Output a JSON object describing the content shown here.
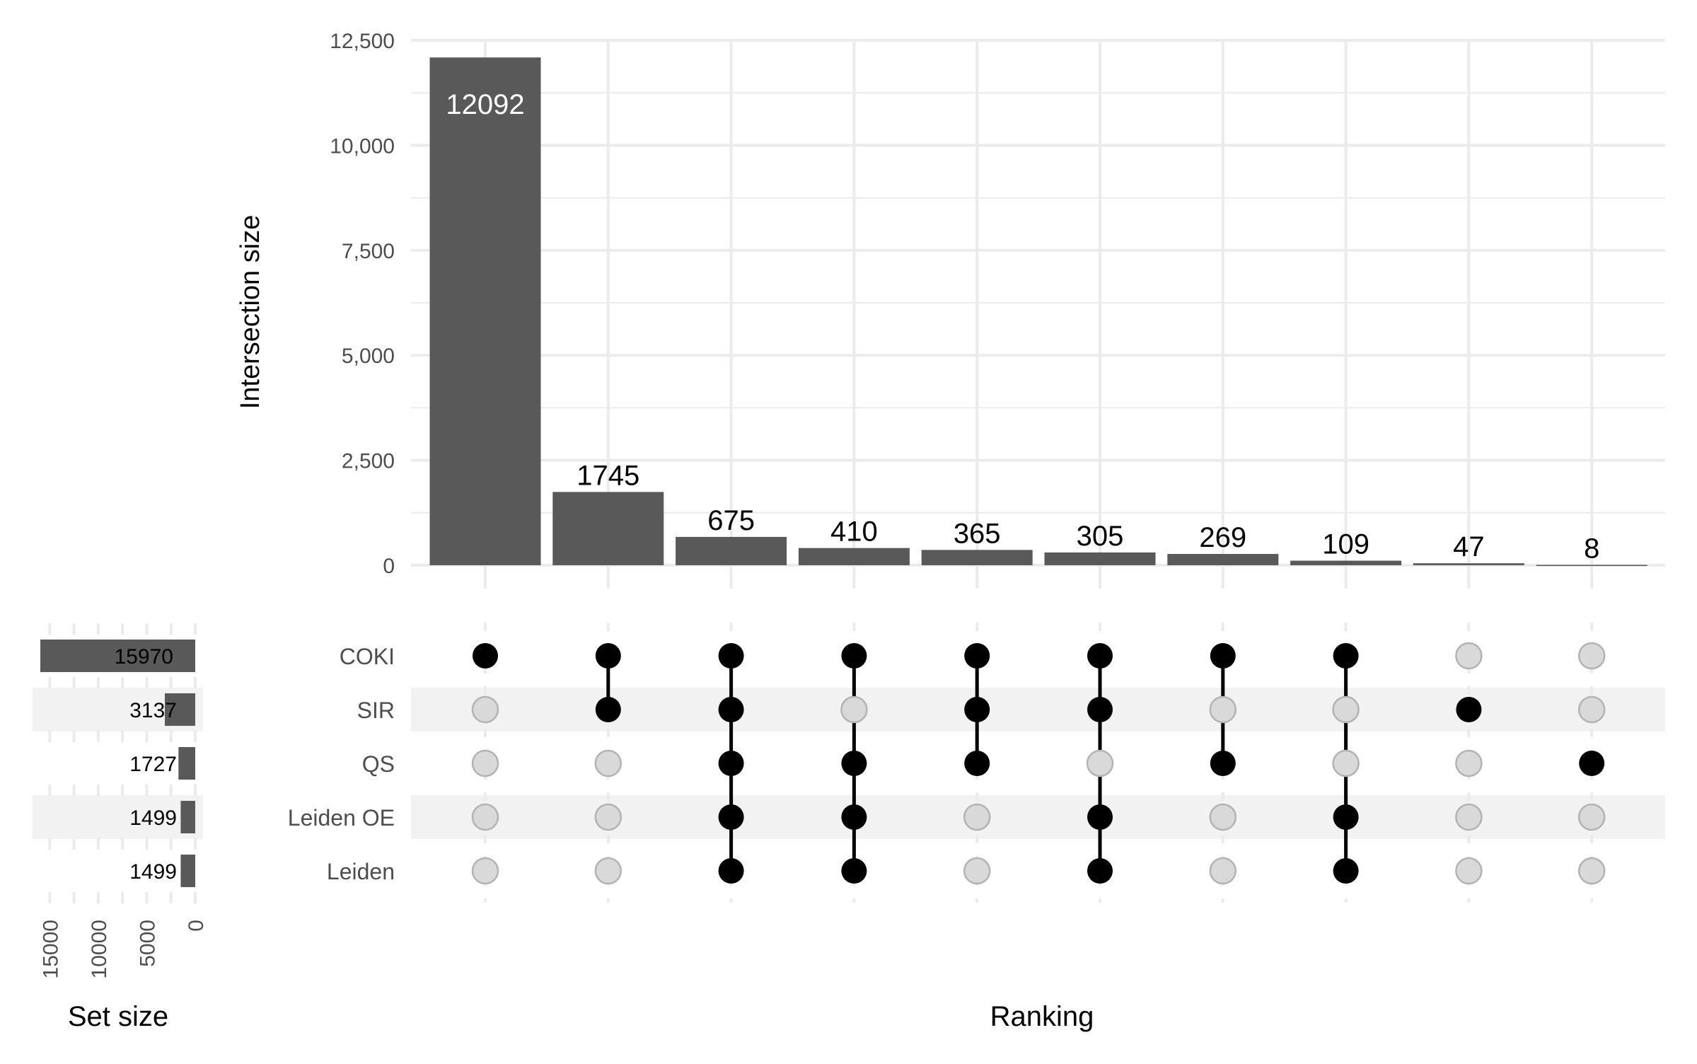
{
  "chart_data": {
    "type": "upset",
    "sets": [
      "COKI",
      "SIR",
      "QS",
      "Leiden OE",
      "Leiden"
    ],
    "set_sizes": [
      15970,
      3137,
      1727,
      1499,
      1499
    ],
    "intersections": [
      {
        "members": [
          "COKI"
        ],
        "size": 12092
      },
      {
        "members": [
          "COKI",
          "SIR"
        ],
        "size": 1745
      },
      {
        "members": [
          "COKI",
          "SIR",
          "QS",
          "Leiden OE",
          "Leiden"
        ],
        "size": 675
      },
      {
        "members": [
          "COKI",
          "QS",
          "Leiden OE",
          "Leiden"
        ],
        "size": 410
      },
      {
        "members": [
          "COKI",
          "SIR",
          "QS"
        ],
        "size": 365
      },
      {
        "members": [
          "COKI",
          "SIR",
          "Leiden OE",
          "Leiden"
        ],
        "size": 305
      },
      {
        "members": [
          "COKI",
          "QS"
        ],
        "size": 269
      },
      {
        "members": [
          "COKI",
          "Leiden OE",
          "Leiden"
        ],
        "size": 109
      },
      {
        "members": [
          "SIR"
        ],
        "size": 47
      },
      {
        "members": [
          "QS"
        ],
        "size": 8
      }
    ],
    "intersection_axis": {
      "label": "Intersection size",
      "ylim": [
        0,
        12500
      ],
      "ticks": [
        0,
        2500,
        5000,
        7500,
        10000,
        12500
      ],
      "tick_labels": [
        "0",
        "2,500",
        "5,000",
        "7,500",
        "10,000",
        "12,500"
      ]
    },
    "set_size_axis": {
      "label": "Set size",
      "ticks": [
        0,
        5000,
        10000,
        15000
      ],
      "tick_labels": [
        "0",
        "5000",
        "10000",
        "15000"
      ],
      "reversed": true
    },
    "xlabel": "Ranking",
    "grid": true,
    "colors": {
      "bar": "#595959",
      "dot_active": "#000000",
      "dot_inactive": "#d9d9d9",
      "stripe": "#f2f2f2",
      "grid": "#ebebeb"
    }
  }
}
